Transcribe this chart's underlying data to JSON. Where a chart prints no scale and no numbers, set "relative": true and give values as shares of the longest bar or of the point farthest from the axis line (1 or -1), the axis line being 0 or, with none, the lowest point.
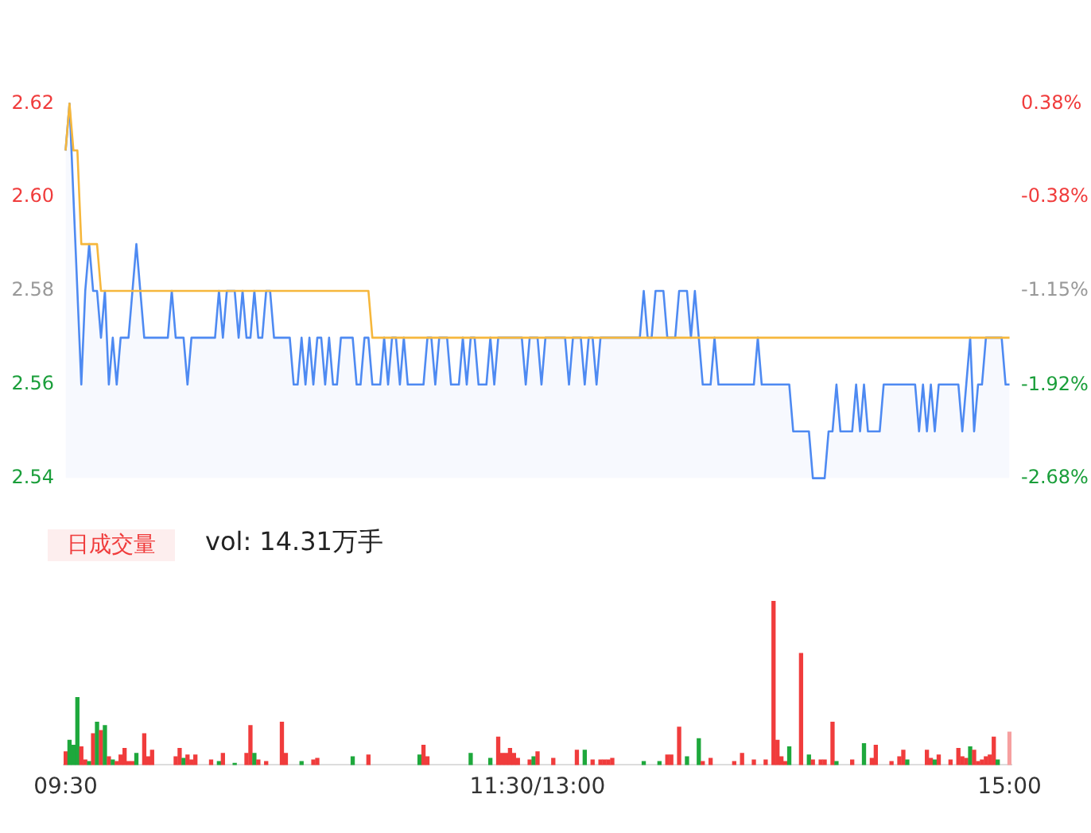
{
  "chart_data": [
    {
      "type": "line",
      "categories": [
        null,
        null,
        null,
        null,
        null,
        null,
        null,
        null,
        null,
        null,
        null,
        null,
        null,
        null,
        null,
        null,
        null,
        null,
        null,
        null,
        null,
        null,
        null,
        null,
        null,
        null,
        null,
        null,
        null,
        null,
        null,
        null,
        null,
        null,
        null,
        null,
        null,
        null,
        null,
        null,
        null,
        null,
        null,
        null,
        null,
        null,
        null,
        null,
        null,
        null,
        null,
        null,
        null,
        null,
        null,
        null,
        null,
        null,
        null,
        null,
        null,
        null,
        null,
        null,
        null,
        null,
        null,
        null,
        null,
        null,
        null,
        null,
        null,
        null,
        null,
        null,
        null,
        null,
        null,
        null,
        null,
        null,
        null,
        null,
        null,
        null,
        null,
        null,
        null,
        null,
        null,
        null,
        null,
        null,
        null,
        null,
        null,
        null,
        null,
        null,
        null,
        null,
        null,
        null,
        null,
        null,
        null,
        null,
        null,
        null,
        null,
        null,
        null,
        null,
        null,
        null,
        null,
        null,
        null,
        null,
        null,
        null,
        null,
        null,
        null,
        null,
        null,
        null,
        null,
        null,
        null,
        null,
        null,
        null,
        null,
        null,
        null,
        null,
        null,
        null,
        null,
        null,
        null,
        null,
        null,
        null,
        null,
        null,
        null,
        null,
        null,
        null,
        null,
        null,
        null,
        null,
        null,
        null,
        null,
        null,
        null,
        null,
        null,
        null,
        null,
        null,
        null,
        null,
        null,
        null,
        null,
        null,
        null,
        null,
        null,
        null,
        null,
        null,
        null,
        null,
        null,
        null,
        null,
        null,
        null,
        null,
        null,
        null,
        null,
        null,
        null,
        null,
        null,
        null,
        null,
        null,
        null,
        null,
        null,
        null,
        null,
        null,
        null,
        null,
        null,
        null,
        null,
        null,
        null,
        null,
        null,
        null,
        null,
        null,
        null,
        null,
        null,
        null,
        null,
        null,
        null,
        null,
        null,
        null,
        null,
        null,
        null,
        null,
        null,
        null,
        null,
        null,
        null,
        null,
        null,
        null,
        null,
        null,
        null,
        null,
        null
      ],
      "ylim": [
        2.54,
        2.62
      ],
      "yticks": [
        2.54,
        2.56,
        2.58,
        {
          "value": 2.6,
          "label": "2.60"
        },
        2.62
      ],
      "y2lim": [
        -2.68,
        0.38
      ],
      "y2ticks": [
        {
          "value": -2.68,
          "label": "-2.68%"
        },
        {
          "value": -1.92,
          "label": "-1.92%"
        },
        {
          "value": -1.15,
          "label": "-1.15%"
        },
        {
          "value": -0.38,
          "label": "-0.38%"
        },
        {
          "value": 0.38,
          "label": "0.38%"
        }
      ],
      "tick_labels": "y",
      "grid": false,
      "legend": false,
      "marker": "none",
      "series": [
        {
          "type": "area",
          "color": "#4e8af2",
          "values": [
            2.61,
            2.62,
            2.6,
            2.58,
            2.56,
            2.58,
            2.59,
            2.58,
            2.58,
            2.57,
            2.58,
            2.56,
            2.57,
            2.56,
            2.57,
            2.57,
            2.57,
            2.58,
            2.59,
            2.58,
            2.57,
            2.57,
            2.57,
            2.57,
            2.57,
            2.57,
            2.57,
            2.58,
            2.57,
            2.57,
            2.57,
            2.56,
            2.57,
            2.57,
            2.57,
            2.57,
            2.57,
            2.57,
            2.57,
            2.58,
            2.57,
            2.58,
            2.58,
            2.58,
            2.57,
            2.58,
            2.57,
            2.57,
            2.58,
            2.57,
            2.57,
            2.58,
            2.58,
            2.57,
            2.57,
            2.57,
            2.57,
            2.57,
            2.56,
            2.56,
            2.57,
            2.56,
            2.57,
            2.56,
            2.57,
            2.57,
            2.56,
            2.57,
            2.56,
            2.56,
            2.57,
            2.57,
            2.57,
            2.57,
            2.56,
            2.56,
            2.57,
            2.57,
            2.56,
            2.56,
            2.56,
            2.57,
            2.56,
            2.57,
            2.57,
            2.56,
            2.57,
            2.56,
            2.56,
            2.56,
            2.56,
            2.56,
            2.57,
            2.57,
            2.56,
            2.57,
            2.57,
            2.57,
            2.56,
            2.56,
            2.56,
            2.57,
            2.56,
            2.57,
            2.57,
            2.56,
            2.56,
            2.56,
            2.57,
            2.56,
            2.57,
            2.57,
            2.57,
            2.57,
            2.57,
            2.57,
            2.57,
            2.56,
            2.57,
            2.57,
            2.57,
            2.56,
            2.57,
            2.57,
            2.57,
            2.57,
            2.57,
            2.57,
            2.56,
            2.57,
            2.57,
            2.57,
            2.56,
            2.57,
            2.57,
            2.56,
            2.57,
            2.57,
            2.57,
            2.57,
            2.57,
            2.57,
            2.57,
            2.57,
            2.57,
            2.57,
            2.57,
            2.58,
            2.57,
            2.57,
            2.58,
            2.58,
            2.58,
            2.57,
            2.57,
            2.57,
            2.58,
            2.58,
            2.58,
            2.57,
            2.58,
            2.57,
            2.56,
            2.56,
            2.56,
            2.57,
            2.56,
            2.56,
            2.56,
            2.56,
            2.56,
            2.56,
            2.56,
            2.56,
            2.56,
            2.56,
            2.57,
            2.56,
            2.56,
            2.56,
            2.56,
            2.56,
            2.56,
            2.56,
            2.56,
            2.55,
            2.55,
            2.55,
            2.55,
            2.55,
            2.54,
            2.54,
            2.54,
            2.54,
            2.55,
            2.55,
            2.56,
            2.55,
            2.55,
            2.55,
            2.55,
            2.56,
            2.55,
            2.56,
            2.55,
            2.55,
            2.55,
            2.55,
            2.56,
            2.56,
            2.56,
            2.56,
            2.56,
            2.56,
            2.56,
            2.56,
            2.56,
            2.55,
            2.56,
            2.55,
            2.56,
            2.55,
            2.56,
            2.56,
            2.56,
            2.56,
            2.56,
            2.56,
            2.55,
            2.56,
            2.57,
            2.55,
            2.56,
            2.56,
            2.57,
            2.57,
            2.57,
            2.57,
            2.57,
            2.56,
            2.56
          ]
        },
        {
          "type": "line",
          "color": "#f6b73c",
          "values": [
            2.61,
            2.62,
            2.61,
            2.61,
            2.59,
            2.59,
            2.59,
            2.59,
            2.59,
            2.58,
            2.58,
            2.58,
            2.58,
            2.58,
            2.58,
            2.58,
            2.58,
            2.58,
            2.58,
            2.58,
            2.58,
            2.58,
            2.58,
            2.58,
            2.58,
            2.58,
            2.58,
            2.58,
            2.58,
            2.58,
            2.58,
            2.58,
            2.58,
            2.58,
            2.58,
            2.58,
            2.58,
            2.58,
            2.58,
            2.58,
            2.58,
            2.58,
            2.58,
            2.58,
            2.58,
            2.58,
            2.58,
            2.58,
            2.58,
            2.58,
            2.58,
            2.58,
            2.58,
            2.58,
            2.58,
            2.58,
            2.58,
            2.58,
            2.58,
            2.58,
            2.58,
            2.58,
            2.58,
            2.58,
            2.58,
            2.58,
            2.58,
            2.58,
            2.58,
            2.58,
            2.58,
            2.58,
            2.58,
            2.58,
            2.58,
            2.58,
            2.58,
            2.58,
            2.57,
            2.57,
            2.57,
            2.57,
            2.57,
            2.57,
            2.57,
            2.57,
            2.57,
            2.57,
            2.57,
            2.57,
            2.57,
            2.57,
            2.57,
            2.57,
            2.57,
            2.57,
            2.57,
            2.57,
            2.57,
            2.57,
            2.57,
            2.57,
            2.57,
            2.57,
            2.57,
            2.57,
            2.57,
            2.57,
            2.57,
            2.57,
            2.57,
            2.57,
            2.57,
            2.57,
            2.57,
            2.57,
            2.57,
            2.57,
            2.57,
            2.57,
            2.57,
            2.57,
            2.57,
            2.57,
            2.57,
            2.57,
            2.57,
            2.57,
            2.57,
            2.57,
            2.57,
            2.57,
            2.57,
            2.57,
            2.57,
            2.57,
            2.57,
            2.57,
            2.57,
            2.57,
            2.57,
            2.57,
            2.57,
            2.57,
            2.57,
            2.57,
            2.57,
            2.57,
            2.57,
            2.57,
            2.57,
            2.57,
            2.57,
            2.57,
            2.57,
            2.57,
            2.57,
            2.57,
            2.57,
            2.57,
            2.57,
            2.57,
            2.57,
            2.57,
            2.57,
            2.57,
            2.57,
            2.57,
            2.57,
            2.57,
            2.57,
            2.57,
            2.57,
            2.57,
            2.57,
            2.57,
            2.57,
            2.57,
            2.57,
            2.57,
            2.57,
            2.57,
            2.57,
            2.57,
            2.57,
            2.57,
            2.57,
            2.57,
            2.57,
            2.57,
            2.57,
            2.57,
            2.57,
            2.57,
            2.57,
            2.57,
            2.57,
            2.57,
            2.57,
            2.57,
            2.57,
            2.57,
            2.57,
            2.57,
            2.57,
            2.57,
            2.57,
            2.57,
            2.57,
            2.57,
            2.57,
            2.57,
            2.57,
            2.57,
            2.57,
            2.57,
            2.57,
            2.57,
            2.57,
            2.57,
            2.57,
            2.57,
            2.57,
            2.57,
            2.57,
            2.57,
            2.57,
            2.57,
            2.57,
            2.57,
            2.57,
            2.57,
            2.57,
            2.57,
            2.57,
            2.57,
            2.57,
            2.57,
            2.57,
            2.57,
            2.57
          ]
        }
      ]
    },
    {
      "type": "bar",
      "relative": true,
      "tick_labels": "x",
      "grid": false,
      "legend": false,
      "annotations": [
        "日成交量",
        "vol: 14.31万手"
      ],
      "categories": [
        "09:30",
        null,
        null,
        null,
        null,
        null,
        null,
        null,
        null,
        null,
        null,
        null,
        null,
        null,
        null,
        null,
        null,
        null,
        null,
        null,
        null,
        null,
        null,
        null,
        null,
        null,
        null,
        null,
        null,
        null,
        null,
        null,
        null,
        null,
        null,
        null,
        null,
        null,
        null,
        null,
        null,
        null,
        null,
        null,
        null,
        null,
        null,
        null,
        null,
        null,
        null,
        null,
        null,
        null,
        null,
        null,
        null,
        null,
        null,
        null,
        null,
        null,
        null,
        null,
        null,
        null,
        null,
        null,
        null,
        null,
        null,
        null,
        null,
        null,
        null,
        null,
        null,
        null,
        null,
        null,
        null,
        null,
        null,
        null,
        null,
        null,
        null,
        null,
        null,
        null,
        null,
        null,
        null,
        null,
        null,
        null,
        null,
        null,
        null,
        null,
        null,
        null,
        null,
        null,
        null,
        null,
        null,
        null,
        null,
        null,
        null,
        null,
        null,
        null,
        null,
        null,
        null,
        null,
        null,
        null,
        "11:30/13:00",
        null,
        null,
        null,
        null,
        null,
        null,
        null,
        null,
        null,
        null,
        null,
        null,
        null,
        null,
        null,
        null,
        null,
        null,
        null,
        null,
        null,
        null,
        null,
        null,
        null,
        null,
        null,
        null,
        null,
        null,
        null,
        null,
        null,
        null,
        null,
        null,
        null,
        null,
        null,
        null,
        null,
        null,
        null,
        null,
        null,
        null,
        null,
        null,
        null,
        null,
        null,
        null,
        null,
        null,
        null,
        null,
        null,
        null,
        null,
        null,
        null,
        null,
        null,
        null,
        null,
        null,
        null,
        null,
        null,
        null,
        null,
        null,
        null,
        null,
        null,
        null,
        null,
        null,
        null,
        null,
        null,
        null,
        null,
        null,
        null,
        null,
        null,
        null,
        null,
        null,
        null,
        null,
        null,
        null,
        null,
        null,
        null,
        null,
        null,
        null,
        null,
        null,
        null,
        null,
        null,
        null,
        null,
        null,
        null,
        null,
        null,
        null,
        null,
        null,
        null,
        null,
        null,
        null,
        null,
        "15:00"
      ],
      "values": [
        0.08,
        0.15,
        0.12,
        0.41,
        0.11,
        0.03,
        0.02,
        0.19,
        0.26,
        0.21,
        0.24,
        0.05,
        0.03,
        0.02,
        0.06,
        0.1,
        0.02,
        0.02,
        0.07,
        null,
        0.19,
        0.05,
        0.09,
        null,
        null,
        null,
        null,
        null,
        0.05,
        0.1,
        0.04,
        0.06,
        0.03,
        0.06,
        null,
        null,
        null,
        0.03,
        null,
        0.02,
        0.07,
        null,
        null,
        0.01,
        null,
        null,
        0.07,
        0.24,
        0.07,
        0.03,
        null,
        0.02,
        null,
        null,
        null,
        0.26,
        0.07,
        null,
        null,
        null,
        0.02,
        null,
        null,
        0.03,
        0.04,
        null,
        null,
        null,
        null,
        null,
        null,
        null,
        null,
        0.05,
        null,
        null,
        null,
        0.06,
        null,
        null,
        null,
        null,
        null,
        null,
        null,
        null,
        null,
        null,
        null,
        null,
        0.06,
        0.12,
        0.05,
        null,
        null,
        null,
        null,
        null,
        null,
        null,
        null,
        null,
        null,
        0.07,
        null,
        null,
        null,
        null,
        0.04,
        null,
        0.17,
        0.07,
        0.07,
        0.1,
        0.07,
        0.04,
        null,
        null,
        0.03,
        0.05,
        0.08,
        null,
        null,
        null,
        0.04,
        null,
        null,
        null,
        null,
        null,
        0.09,
        null,
        0.09,
        null,
        0.03,
        null,
        0.03,
        0.03,
        0.03,
        0.04,
        null,
        null,
        null,
        null,
        null,
        null,
        null,
        0.02,
        null,
        null,
        null,
        0.02,
        null,
        0.06,
        0.06,
        null,
        0.23,
        null,
        0.05,
        null,
        null,
        0.16,
        0.02,
        null,
        0.04,
        null,
        null,
        null,
        null,
        null,
        0.02,
        null,
        0.07,
        null,
        null,
        0.03,
        null,
        null,
        0.03,
        null,
        1,
        0.15,
        0.05,
        0.02,
        0.11,
        null,
        null,
        0.68,
        null,
        0.06,
        0.03,
        null,
        0.03,
        0.03,
        null,
        0.26,
        0.02,
        null,
        null,
        null,
        0.03,
        null,
        null,
        0.13,
        null,
        0.04,
        0.12,
        null,
        null,
        null,
        0.02,
        null,
        0.05,
        0.09,
        0.03,
        null,
        null,
        null,
        null,
        0.09,
        0.04,
        0.03,
        0.06,
        null,
        null,
        0.03,
        null,
        0.1,
        0.05,
        0.04,
        0.11,
        0.09,
        0.02,
        0.03,
        0.05,
        0.06,
        0.17,
        0.03,
        null,
        null,
        0.2
      ],
      "colors": [
        "#f03c3c",
        "#1ea83c",
        "#1ea83c",
        "#1ea83c",
        "#f03c3c",
        "#f03c3c",
        "#1ea83c",
        "#f03c3c",
        "#1ea83c",
        "#f03c3c",
        "#1ea83c",
        "#f03c3c",
        "#1ea83c",
        "#f03c3c",
        "#f03c3c",
        "#f03c3c",
        "#f03c3c",
        "#f03c3c",
        "#1ea83c",
        null,
        "#f03c3c",
        "#f03c3c",
        "#f03c3c",
        null,
        null,
        null,
        null,
        null,
        "#f03c3c",
        "#f03c3c",
        "#1ea83c",
        "#f03c3c",
        "#f03c3c",
        "#f03c3c",
        null,
        null,
        null,
        "#f03c3c",
        null,
        "#1ea83c",
        "#f03c3c",
        null,
        null,
        "#1ea83c",
        null,
        null,
        "#f03c3c",
        "#f03c3c",
        "#1ea83c",
        "#f03c3c",
        null,
        "#f03c3c",
        null,
        null,
        null,
        "#f03c3c",
        "#f03c3c",
        null,
        null,
        null,
        "#1ea83c",
        null,
        null,
        "#f03c3c",
        "#f03c3c",
        null,
        null,
        null,
        null,
        null,
        null,
        null,
        null,
        "#1ea83c",
        null,
        null,
        null,
        "#f03c3c",
        null,
        null,
        null,
        null,
        null,
        null,
        null,
        null,
        null,
        null,
        null,
        null,
        "#1ea83c",
        "#f03c3c",
        "#f03c3c",
        null,
        null,
        null,
        null,
        null,
        null,
        null,
        null,
        null,
        null,
        "#1ea83c",
        null,
        null,
        null,
        null,
        "#1ea83c",
        null,
        "#f03c3c",
        "#f03c3c",
        "#f03c3c",
        "#f03c3c",
        "#f03c3c",
        "#f03c3c",
        null,
        null,
        "#f03c3c",
        "#1ea83c",
        "#f03c3c",
        null,
        null,
        null,
        "#f03c3c",
        null,
        null,
        null,
        null,
        null,
        "#f03c3c",
        null,
        "#1ea83c",
        null,
        "#f03c3c",
        null,
        "#f03c3c",
        "#f03c3c",
        "#f03c3c",
        "#f03c3c",
        null,
        null,
        null,
        null,
        null,
        null,
        null,
        "#1ea83c",
        null,
        null,
        null,
        "#1ea83c",
        null,
        "#f03c3c",
        "#f03c3c",
        null,
        "#f03c3c",
        null,
        "#1ea83c",
        null,
        null,
        "#1ea83c",
        "#f03c3c",
        null,
        "#f03c3c",
        null,
        null,
        null,
        null,
        null,
        "#f03c3c",
        null,
        "#f03c3c",
        null,
        null,
        "#f03c3c",
        null,
        null,
        "#f03c3c",
        null,
        "#f03c3c",
        "#f03c3c",
        "#f03c3c",
        "#f03c3c",
        "#1ea83c",
        null,
        null,
        "#f03c3c",
        null,
        "#1ea83c",
        "#f03c3c",
        null,
        "#f03c3c",
        "#f03c3c",
        null,
        "#f03c3c",
        "#1ea83c",
        null,
        null,
        null,
        "#f03c3c",
        null,
        null,
        "#1ea83c",
        null,
        "#f03c3c",
        "#f03c3c",
        null,
        null,
        null,
        "#f03c3c",
        null,
        "#f03c3c",
        "#f03c3c",
        "#1ea83c",
        null,
        null,
        null,
        null,
        "#f03c3c",
        "#f03c3c",
        "#1ea83c",
        "#f03c3c",
        null,
        null,
        "#f03c3c",
        null,
        "#f03c3c",
        "#f03c3c",
        "#f03c3c",
        "#1ea83c",
        "#f03c3c",
        "#f03c3c",
        "#f03c3c",
        "#f03c3c",
        "#f03c3c",
        "#f03c3c",
        "#1ea83c",
        null,
        null,
        "#f6a0a0"
      ]
    }
  ]
}
